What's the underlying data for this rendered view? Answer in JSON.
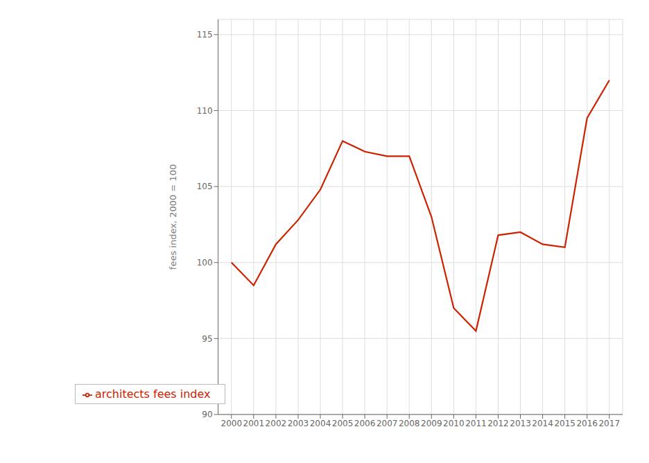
{
  "chart_data": {
    "type": "line",
    "x": [
      2000,
      2001,
      2002,
      2003,
      2004,
      2005,
      2006,
      2007,
      2008,
      2009,
      2010,
      2011,
      2012,
      2013,
      2014,
      2015,
      2016,
      2017
    ],
    "series": [
      {
        "name": "architects fees index",
        "color": "#cc2200",
        "values": [
          100.0,
          98.5,
          101.2,
          102.8,
          104.8,
          108.0,
          107.3,
          107.0,
          107.0,
          103.0,
          97.0,
          95.5,
          101.8,
          102.0,
          101.2,
          101.0,
          109.5,
          112.0
        ]
      }
    ],
    "ylabel": "fees index, 2000 = 100",
    "xlim": [
      1999.4,
      2017.6
    ],
    "xticks": [
      2000,
      2001,
      2002,
      2003,
      2004,
      2005,
      2006,
      2007,
      2008,
      2009,
      2010,
      2011,
      2012,
      2013,
      2014,
      2015,
      2016,
      2017
    ],
    "ylim": [
      90,
      116
    ],
    "yticks": [
      90,
      95,
      100,
      105,
      110,
      115
    ],
    "grid": true,
    "legend": "lower left"
  }
}
